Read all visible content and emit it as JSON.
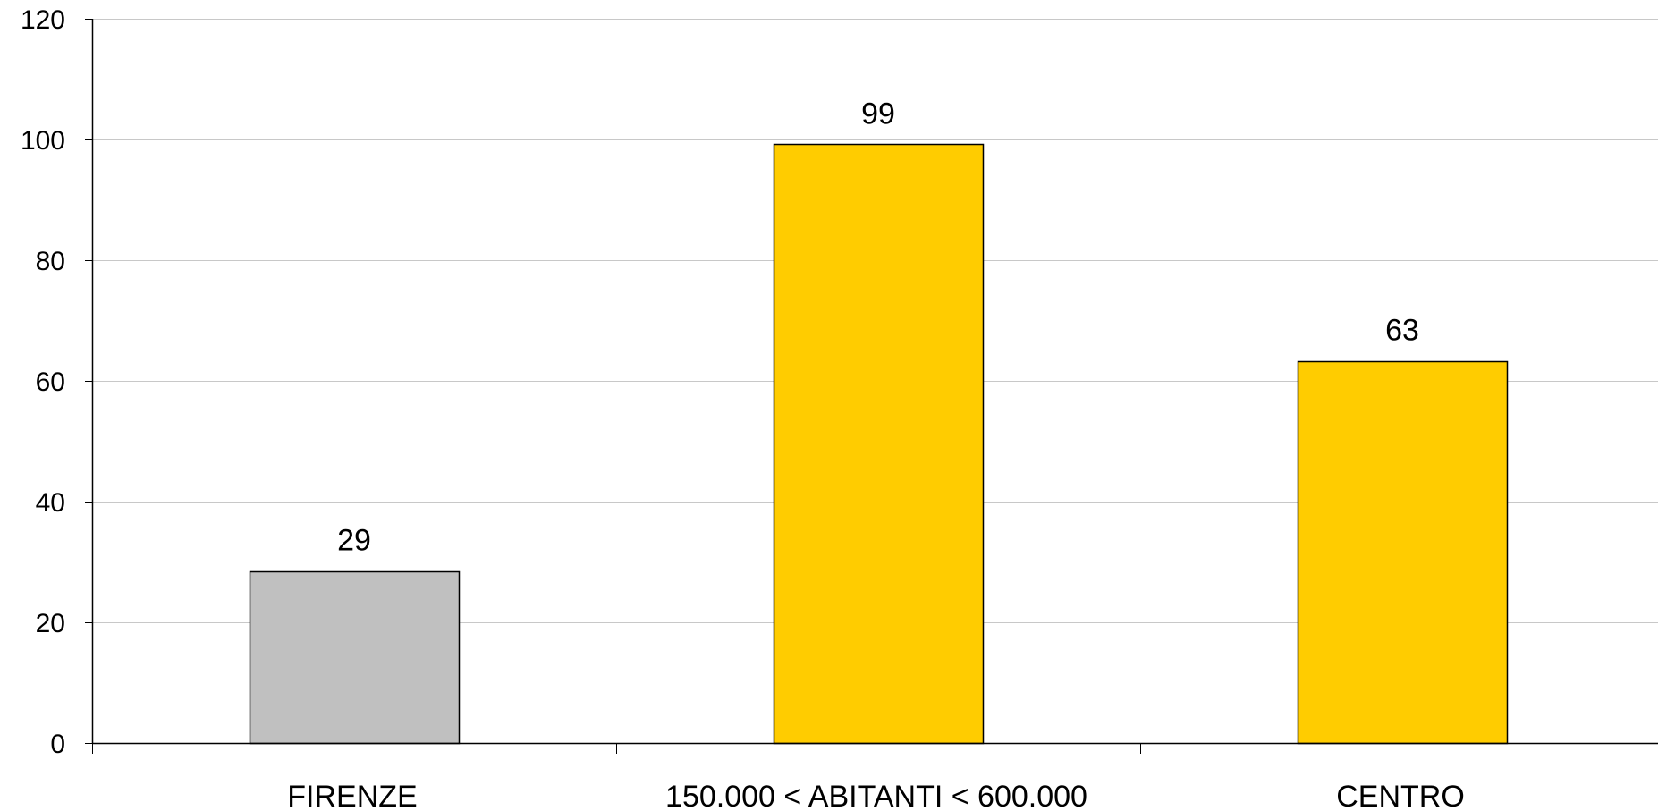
{
  "chart_data": {
    "type": "bar",
    "title": "",
    "xlabel": "",
    "ylabel": "",
    "categories": [
      "FIRENZE",
      "150.000 < ABITANTI < 600.000",
      "CENTRO"
    ],
    "values": [
      28.5,
      99.2,
      63.3
    ],
    "data_labels": [
      "29",
      "99",
      "63"
    ],
    "bar_colors": [
      "#C0C0C0",
      "#FFCC00",
      "#FFCC00"
    ],
    "ylim": [
      0,
      120
    ],
    "yticks": [
      0,
      20,
      40,
      60,
      80,
      100,
      120
    ],
    "grid": true,
    "grid_color": "#C8C8C8",
    "legend": "none"
  }
}
